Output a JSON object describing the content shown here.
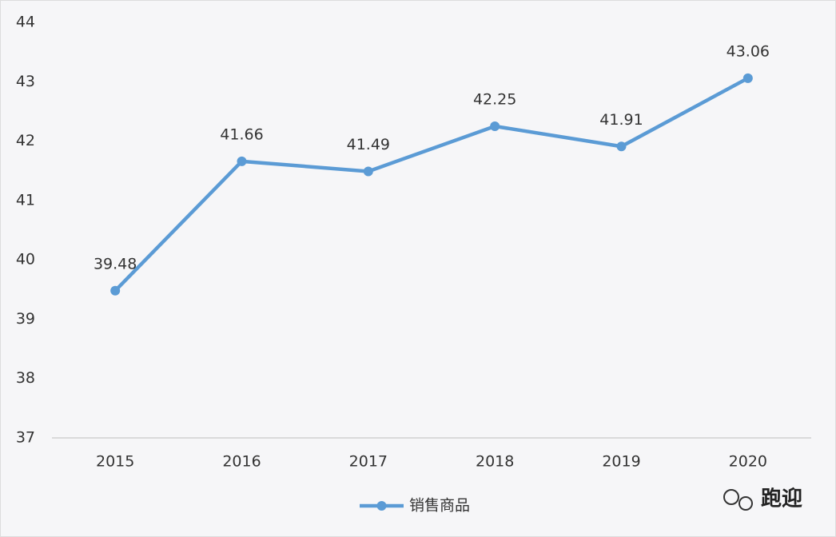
{
  "chart_data": {
    "type": "line",
    "categories": [
      "2015",
      "2016",
      "2017",
      "2018",
      "2019",
      "2020"
    ],
    "series": [
      {
        "name": "销售商品",
        "color": "#5b9bd5",
        "values": [
          39.48,
          41.66,
          41.49,
          42.25,
          41.91,
          43.06
        ]
      }
    ],
    "ylim": [
      37,
      44
    ],
    "yticks": [
      37,
      38,
      39,
      40,
      41,
      42,
      43,
      44
    ],
    "grid": false,
    "legend": "bottom"
  },
  "watermark": "跑迎"
}
